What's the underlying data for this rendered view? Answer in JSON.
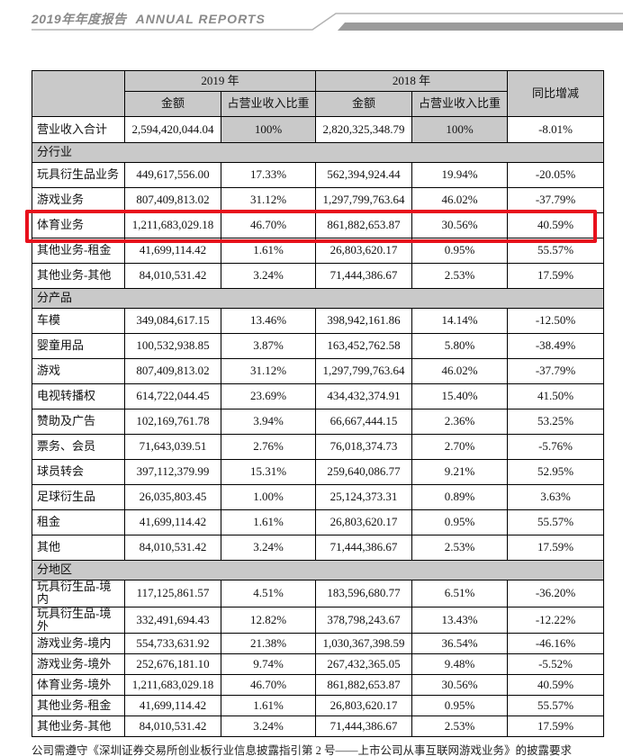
{
  "page_header": {
    "title_zh": "2019年年度报告",
    "title_en": "ANNUAL REPORTS"
  },
  "table": {
    "header": {
      "col_2019": "2019 年",
      "col_2018": "2018 年",
      "amount_label": "金额",
      "pct_label": "占营业收入比重",
      "yoy_label": "同比增减"
    },
    "total_row": {
      "label": "营业收入合计",
      "amount_2019": "2,594,420,044.04",
      "pct_2019": "100%",
      "amount_2018": "2,820,325,348.79",
      "pct_2018": "100%",
      "yoy": "-8.01%"
    },
    "sections": [
      {
        "title": "分行业",
        "rows": [
          {
            "label": "玩具衍生品业务",
            "amount_2019": "449,617,556.00",
            "pct_2019": "17.33%",
            "amount_2018": "562,394,924.44",
            "pct_2018": "19.94%",
            "yoy": "-20.05%",
            "highlight": false
          },
          {
            "label": "游戏业务",
            "amount_2019": "807,409,813.02",
            "pct_2019": "31.12%",
            "amount_2018": "1,297,799,763.64",
            "pct_2018": "46.02%",
            "yoy": "-37.79%",
            "highlight": false
          },
          {
            "label": "体育业务",
            "amount_2019": "1,211,683,029.18",
            "pct_2019": "46.70%",
            "amount_2018": "861,882,653.87",
            "pct_2018": "30.56%",
            "yoy": "40.59%",
            "highlight": true
          },
          {
            "label": "其他业务-租金",
            "amount_2019": "41,699,114.42",
            "pct_2019": "1.61%",
            "amount_2018": "26,803,620.17",
            "pct_2018": "0.95%",
            "yoy": "55.57%",
            "highlight": false
          },
          {
            "label": "其他业务-其他",
            "amount_2019": "84,010,531.42",
            "pct_2019": "3.24%",
            "amount_2018": "71,444,386.67",
            "pct_2018": "2.53%",
            "yoy": "17.59%",
            "highlight": false
          }
        ]
      },
      {
        "title": "分产品",
        "rows": [
          {
            "label": "车模",
            "amount_2019": "349,084,617.15",
            "pct_2019": "13.46%",
            "amount_2018": "398,942,161.86",
            "pct_2018": "14.14%",
            "yoy": "-12.50%",
            "highlight": false
          },
          {
            "label": "婴童用品",
            "amount_2019": "100,532,938.85",
            "pct_2019": "3.87%",
            "amount_2018": "163,452,762.58",
            "pct_2018": "5.80%",
            "yoy": "-38.49%",
            "highlight": false
          },
          {
            "label": "游戏",
            "amount_2019": "807,409,813.02",
            "pct_2019": "31.12%",
            "amount_2018": "1,297,799,763.64",
            "pct_2018": "46.02%",
            "yoy": "-37.79%",
            "highlight": false
          },
          {
            "label": "电视转播权",
            "amount_2019": "614,722,044.45",
            "pct_2019": "23.69%",
            "amount_2018": "434,432,374.91",
            "pct_2018": "15.40%",
            "yoy": "41.50%",
            "highlight": false
          },
          {
            "label": "赞助及广告",
            "amount_2019": "102,169,761.78",
            "pct_2019": "3.94%",
            "amount_2018": "66,667,444.15",
            "pct_2018": "2.36%",
            "yoy": "53.25%",
            "highlight": false
          },
          {
            "label": "票务、会员",
            "amount_2019": "71,643,039.51",
            "pct_2019": "2.76%",
            "amount_2018": "76,018,374.73",
            "pct_2018": "2.70%",
            "yoy": "-5.76%",
            "highlight": false
          },
          {
            "label": "球员转会",
            "amount_2019": "397,112,379.99",
            "pct_2019": "15.31%",
            "amount_2018": "259,640,086.77",
            "pct_2018": "9.21%",
            "yoy": "52.95%",
            "highlight": false
          },
          {
            "label": "足球衍生品",
            "amount_2019": "26,035,803.45",
            "pct_2019": "1.00%",
            "amount_2018": "25,124,373.31",
            "pct_2018": "0.89%",
            "yoy": "3.63%",
            "highlight": false
          },
          {
            "label": "租金",
            "amount_2019": "41,699,114.42",
            "pct_2019": "1.61%",
            "amount_2018": "26,803,620.17",
            "pct_2018": "0.95%",
            "yoy": "55.57%",
            "highlight": false
          },
          {
            "label": "其他",
            "amount_2019": "84,010,531.42",
            "pct_2019": "3.24%",
            "amount_2018": "71,444,386.67",
            "pct_2018": "2.53%",
            "yoy": "17.59%",
            "highlight": false
          }
        ]
      },
      {
        "title": "分地区",
        "rows": [
          {
            "label": "玩具衍生品-境内",
            "amount_2019": "117,125,861.57",
            "pct_2019": "4.51%",
            "amount_2018": "183,596,680.77",
            "pct_2018": "6.51%",
            "yoy": "-36.20%",
            "highlight": false
          },
          {
            "label": "玩具衍生品-境外",
            "amount_2019": "332,491,694.43",
            "pct_2019": "12.82%",
            "amount_2018": "378,798,243.67",
            "pct_2018": "13.43%",
            "yoy": "-12.22%",
            "highlight": false
          },
          {
            "label": "游戏业务-境内",
            "amount_2019": "554,733,631.92",
            "pct_2019": "21.38%",
            "amount_2018": "1,030,367,398.59",
            "pct_2018": "36.54%",
            "yoy": "-46.16%",
            "highlight": false
          },
          {
            "label": "游戏业务-境外",
            "amount_2019": "252,676,181.10",
            "pct_2019": "9.74%",
            "amount_2018": "267,432,365.05",
            "pct_2018": "9.48%",
            "yoy": "-5.52%",
            "highlight": false
          },
          {
            "label": "体育业务-境外",
            "amount_2019": "1,211,683,029.18",
            "pct_2019": "46.70%",
            "amount_2018": "861,882,653.87",
            "pct_2018": "30.56%",
            "yoy": "40.59%",
            "highlight": false
          },
          {
            "label": "其他业务-租金",
            "amount_2019": "41,699,114.42",
            "pct_2019": "1.61%",
            "amount_2018": "26,803,620.17",
            "pct_2018": "0.95%",
            "yoy": "55.57%",
            "highlight": false
          },
          {
            "label": "其他业务-其他",
            "amount_2019": "84,010,531.42",
            "pct_2019": "3.24%",
            "amount_2018": "71,444,386.67",
            "pct_2018": "2.53%",
            "yoy": "17.59%",
            "highlight": false
          }
        ]
      }
    ]
  },
  "annotation": {
    "highlighted_row": "体育业务",
    "highlight_color": "#e8101c"
  },
  "footnote": "公司需遵守《深圳证券交易所创业板行业信息披露指引第 2 号——上市公司从事互联网游戏业务》的披露要求",
  "colors": {
    "cell_shade": "#c9c9c9",
    "title_gray": "#8a8a8a",
    "border": "#000000"
  }
}
